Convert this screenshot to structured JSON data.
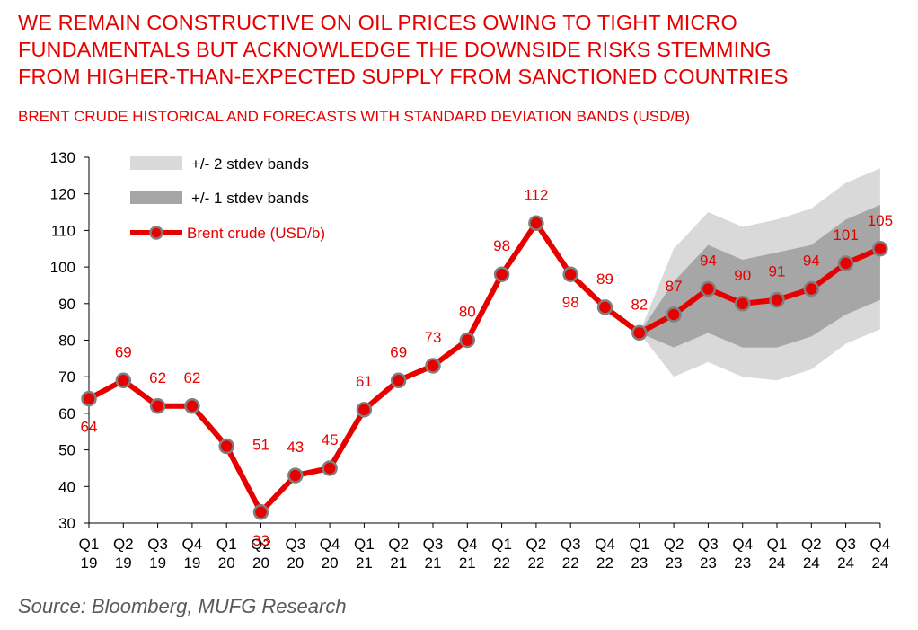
{
  "headline": {
    "lines": [
      "WE REMAIN CONSTRUCTIVE ON OIL PRICES OWING TO TIGHT MICRO",
      "FUNDAMENTALS BUT ACKNOWLEDGE THE DOWNSIDE RISKS STEMMING",
      "FROM HIGHER-THAN-EXPECTED SUPPLY FROM SANCTIONED COUNTRIES"
    ]
  },
  "source": "Source: Bloomberg, MUFG Research",
  "colors": {
    "accent": "#e60000",
    "line": "#e60000",
    "marker_edge": "#7f7f7f",
    "band2": "#d9d9d9",
    "band1": "#a6a6a6"
  },
  "chart_data": {
    "type": "line",
    "title": "BRENT CRUDE HISTORICAL AND FORECASTS WITH STANDARD DEVIATION BANDS (USD/B)",
    "xlabel": "",
    "ylabel": "",
    "ylim": [
      30,
      130
    ],
    "yticks": [
      30,
      40,
      50,
      60,
      70,
      80,
      90,
      100,
      110,
      120,
      130
    ],
    "grid": false,
    "legend_position": "top-left",
    "categories": [
      [
        "Q1",
        "19"
      ],
      [
        "Q2",
        "19"
      ],
      [
        "Q3",
        "19"
      ],
      [
        "Q4",
        "19"
      ],
      [
        "Q1",
        "20"
      ],
      [
        "Q2",
        "20"
      ],
      [
        "Q3",
        "20"
      ],
      [
        "Q4",
        "20"
      ],
      [
        "Q1",
        "21"
      ],
      [
        "Q2",
        "21"
      ],
      [
        "Q3",
        "21"
      ],
      [
        "Q4",
        "21"
      ],
      [
        "Q1",
        "22"
      ],
      [
        "Q2",
        "22"
      ],
      [
        "Q3",
        "22"
      ],
      [
        "Q4",
        "22"
      ],
      [
        "Q1",
        "23"
      ],
      [
        "Q2",
        "23"
      ],
      [
        "Q3",
        "23"
      ],
      [
        "Q4",
        "23"
      ],
      [
        "Q1",
        "24"
      ],
      [
        "Q2",
        "24"
      ],
      [
        "Q3",
        "24"
      ],
      [
        "Q4",
        "24"
      ]
    ],
    "series": [
      {
        "name": "Brent crude (USD/b)",
        "values": [
          64,
          69,
          62,
          62,
          51,
          33,
          43,
          45,
          61,
          69,
          73,
          80,
          98,
          112,
          98,
          89,
          82,
          87,
          94,
          90,
          91,
          94,
          101,
          105
        ],
        "data_labels": [
          "64",
          "69",
          "62",
          "62",
          "",
          "33",
          "43",
          "45",
          "61",
          "69",
          "73",
          "80",
          "98",
          "112",
          "98",
          "89",
          "82",
          "87",
          "94",
          "90",
          "91",
          "94",
          "101",
          "105"
        ],
        "label_below": [
          true,
          false,
          false,
          false,
          false,
          true,
          false,
          false,
          false,
          false,
          false,
          false,
          false,
          false,
          true,
          false,
          false,
          false,
          false,
          false,
          false,
          false,
          false,
          false
        ]
      }
    ],
    "bands": [
      {
        "name": "+/- 2 stdev bands",
        "start_index": 16,
        "upper": [
          82,
          105,
          115,
          111,
          113,
          116,
          123,
          127
        ],
        "lower": [
          82,
          70,
          74,
          70,
          69,
          72,
          79,
          83
        ]
      },
      {
        "name": "+/- 1 stdev bands",
        "start_index": 16,
        "upper": [
          82,
          96,
          106,
          102,
          104,
          106,
          113,
          117
        ],
        "lower": [
          82,
          78,
          82,
          78,
          78,
          81,
          87,
          91
        ]
      }
    ],
    "annotations": [
      {
        "text": "51",
        "index": 5,
        "value": 51
      }
    ]
  }
}
